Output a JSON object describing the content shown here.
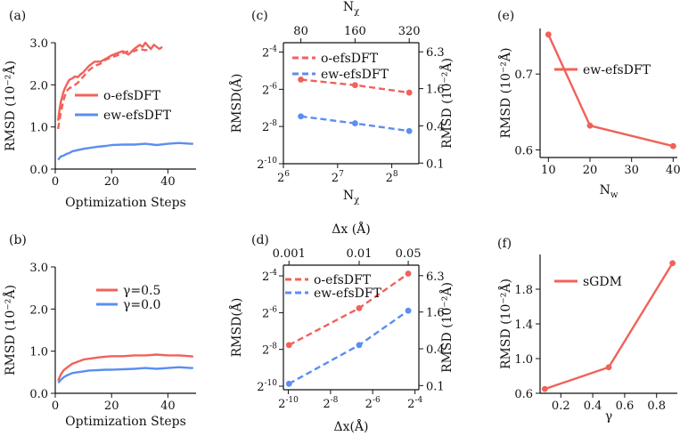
{
  "figure": {
    "colors": {
      "red": "#f0625a",
      "blue": "#5b8ef0",
      "axis": "#111111"
    }
  },
  "chart_data": [
    {
      "panel": "a",
      "tag": "(a)",
      "type": "line",
      "xlabel": "Optimization Steps",
      "ylabel": "RMSD (10⁻²Å)",
      "xlim": [
        0,
        50
      ],
      "ylim": [
        0,
        3.0
      ],
      "xticks": [
        "0",
        "20",
        "40"
      ],
      "yticks": [
        "0.0",
        "1.0",
        "2.0",
        "3.0"
      ],
      "legend_position": "center-right",
      "series": [
        {
          "name": "o-efsDFT",
          "color": "#f0625a",
          "style": "solid",
          "x": [
            1,
            1.5,
            2,
            3,
            4,
            5,
            6,
            7,
            8,
            9,
            10,
            12,
            14,
            16,
            18,
            20,
            22,
            24,
            26,
            28,
            30,
            31,
            32,
            33,
            34,
            35,
            36,
            37,
            38
          ],
          "y": [
            1.15,
            1.4,
            1.6,
            1.85,
            2.0,
            2.12,
            2.15,
            2.2,
            2.18,
            2.25,
            2.3,
            2.45,
            2.55,
            2.55,
            2.62,
            2.7,
            2.75,
            2.8,
            2.72,
            2.85,
            2.95,
            2.9,
            3.0,
            2.92,
            2.85,
            2.95,
            2.9,
            2.85,
            2.9
          ]
        },
        {
          "name": "",
          "color": "#f0625a",
          "style": "dashed",
          "x": [
            1,
            2,
            3,
            4,
            5,
            6,
            8,
            10,
            12,
            14,
            16,
            18,
            20,
            22,
            24,
            26,
            28,
            30,
            32,
            34
          ],
          "y": [
            0.95,
            1.35,
            1.65,
            1.85,
            1.92,
            1.95,
            2.05,
            2.2,
            2.35,
            2.45,
            2.5,
            2.6,
            2.65,
            2.7,
            2.75,
            2.8,
            2.8,
            2.85,
            2.82,
            2.85
          ]
        },
        {
          "name": "ew-efsDFT",
          "color": "#5b8ef0",
          "style": "solid",
          "x": [
            1,
            2,
            3,
            4,
            5,
            6,
            8,
            10,
            12,
            15,
            18,
            20,
            24,
            28,
            32,
            36,
            40,
            44,
            48,
            49
          ],
          "y": [
            0.22,
            0.3,
            0.32,
            0.36,
            0.38,
            0.42,
            0.45,
            0.48,
            0.5,
            0.53,
            0.55,
            0.57,
            0.58,
            0.58,
            0.6,
            0.57,
            0.6,
            0.62,
            0.6,
            0.6
          ]
        }
      ]
    },
    {
      "panel": "b",
      "tag": "(b)",
      "type": "line",
      "xlabel": "Optimization Steps",
      "ylabel": "RMSD (10⁻²Å)",
      "xlim": [
        0,
        50
      ],
      "ylim": [
        0,
        3.0
      ],
      "xticks": [
        "0",
        "20",
        "40"
      ],
      "yticks": [
        "0.0",
        "1.0",
        "2.0",
        "3.0"
      ],
      "legend_position": "top-center",
      "series": [
        {
          "name": "γ=0.5",
          "color": "#f0625a",
          "style": "solid",
          "x": [
            1,
            2,
            3,
            4,
            5,
            6,
            8,
            10,
            12,
            15,
            18,
            20,
            24,
            28,
            32,
            36,
            40,
            44,
            48,
            49
          ],
          "y": [
            0.3,
            0.45,
            0.55,
            0.6,
            0.65,
            0.7,
            0.75,
            0.8,
            0.82,
            0.85,
            0.87,
            0.88,
            0.88,
            0.9,
            0.9,
            0.92,
            0.9,
            0.9,
            0.88,
            0.87
          ]
        },
        {
          "name": "γ=0.0",
          "color": "#5b8ef0",
          "style": "solid",
          "x": [
            1,
            2,
            3,
            4,
            5,
            6,
            8,
            10,
            12,
            15,
            18,
            20,
            24,
            28,
            32,
            36,
            40,
            44,
            48,
            49
          ],
          "y": [
            0.25,
            0.32,
            0.38,
            0.42,
            0.45,
            0.48,
            0.5,
            0.52,
            0.54,
            0.55,
            0.56,
            0.56,
            0.57,
            0.58,
            0.6,
            0.58,
            0.6,
            0.62,
            0.6,
            0.6
          ]
        }
      ]
    },
    {
      "panel": "c",
      "tag": "(c)",
      "type": "line",
      "xlabel": "Nχ",
      "ylabel": "RMSD(Å)",
      "y2label": "RMSD (10⁻²Å)",
      "x2label": "Nχ",
      "x_scale": "log2",
      "y_scale": "log2",
      "xlim": [
        64,
        362
      ],
      "ylim": [
        0.000977,
        0.0884
      ],
      "xticks": [
        {
          "label": "2",
          "sup": "6",
          "v": 64
        },
        {
          "label": "2",
          "sup": "7",
          "v": 128
        },
        {
          "label": "2",
          "sup": "8",
          "v": 256
        }
      ],
      "yticks": [
        {
          "label": "2",
          "sup": "-10",
          "v": 0.000977
        },
        {
          "label": "2",
          "sup": "-8",
          "v": 0.00391
        },
        {
          "label": "2",
          "sup": "-6",
          "v": 0.0156
        },
        {
          "label": "2",
          "sup": "-4",
          "v": 0.0625
        }
      ],
      "x2ticks": [
        {
          "label": "80",
          "v": 80
        },
        {
          "label": "160",
          "v": 160
        },
        {
          "label": "320",
          "v": 320
        }
      ],
      "y2ticks": [
        {
          "label": "0.1",
          "v": 0.001
        },
        {
          "label": "0.4",
          "v": 0.004
        },
        {
          "label": "1.6",
          "v": 0.016
        },
        {
          "label": "6.3",
          "v": 0.063
        }
      ],
      "legend_position": "top-right",
      "series": [
        {
          "name": "o-efsDFT",
          "color": "#f0625a",
          "style": "dashed",
          "x": [
            80,
            160,
            320
          ],
          "y": [
            0.0224,
            0.0182,
            0.0138
          ]
        },
        {
          "name": "ew-efsDFT",
          "color": "#5b8ef0",
          "style": "dashed",
          "x": [
            80,
            160,
            320
          ],
          "y": [
            0.0057,
            0.0044,
            0.0033
          ]
        }
      ]
    },
    {
      "panel": "d",
      "tag": "(d)",
      "type": "line",
      "xlabel": "Δx(Å)",
      "ylabel": "RMSD(Å)",
      "y2label": "RMSD (10⁻²Å)",
      "x2label": "Δx (Å)",
      "x_scale": "log2",
      "y_scale": "log2",
      "xlim": [
        0.000833,
        0.0709
      ],
      "ylim": [
        0.000855,
        0.0936
      ],
      "xticks": [
        {
          "label": "2",
          "sup": "-10",
          "v": 0.000977
        },
        {
          "label": "2",
          "sup": "-8",
          "v": 0.00391
        },
        {
          "label": "2",
          "sup": "-6",
          "v": 0.0156
        },
        {
          "label": "2",
          "sup": "-4",
          "v": 0.0625
        }
      ],
      "yticks": [
        {
          "label": "2",
          "sup": "-10",
          "v": 0.000977
        },
        {
          "label": "2",
          "sup": "-8",
          "v": 0.00391
        },
        {
          "label": "2",
          "sup": "-6",
          "v": 0.0156
        },
        {
          "label": "2",
          "sup": "-4",
          "v": 0.0625
        }
      ],
      "x2ticks": [
        {
          "label": "0.001",
          "v": 0.001
        },
        {
          "label": "0.01",
          "v": 0.01
        },
        {
          "label": "0.05",
          "v": 0.05
        }
      ],
      "y2ticks": [
        {
          "label": "0.1",
          "v": 0.001
        },
        {
          "label": "0.4",
          "v": 0.004
        },
        {
          "label": "1.6",
          "v": 0.016
        },
        {
          "label": "6.3",
          "v": 0.063
        }
      ],
      "legend_position": "top-left",
      "series": [
        {
          "name": "o-efsDFT",
          "color": "#f0625a",
          "style": "dashed",
          "x": [
            0.001,
            0.01,
            0.05
          ],
          "y": [
            0.0046,
            0.0185,
            0.068
          ]
        },
        {
          "name": "ew-efsDFT",
          "color": "#5b8ef0",
          "style": "dashed",
          "x": [
            0.001,
            0.01,
            0.05
          ],
          "y": [
            0.00107,
            0.0046,
            0.0168
          ]
        }
      ]
    },
    {
      "panel": "e",
      "tag": "(e)",
      "type": "line",
      "xlabel": "N_w",
      "xlabel_main": "N",
      "xlabel_sub": "w",
      "ylabel": "RMSD (10⁻²Å)",
      "xlim": [
        8,
        41
      ],
      "ylim": [
        0.59,
        0.76
      ],
      "xticks": [
        {
          "label": "10",
          "v": 10
        },
        {
          "label": "20",
          "v": 20
        },
        {
          "label": "30",
          "v": 30
        },
        {
          "label": "40",
          "v": 40
        }
      ],
      "yticks": [
        {
          "label": "0.6",
          "v": 0.6
        },
        {
          "label": "0.7",
          "v": 0.7
        }
      ],
      "legend_position": "top-right",
      "series": [
        {
          "name": "ew-efsDFT",
          "color": "#f0625a",
          "style": "solid",
          "x": [
            10,
            20,
            40
          ],
          "y": [
            0.752,
            0.632,
            0.605
          ]
        }
      ]
    },
    {
      "panel": "f",
      "tag": "(f)",
      "type": "line",
      "xlabel": "γ",
      "ylabel": "RMSD (10⁻²Å)",
      "xlim": [
        0.07,
        0.93
      ],
      "ylim": [
        0.6,
        2.2
      ],
      "xticks": [
        {
          "label": "0.2",
          "v": 0.2
        },
        {
          "label": "0.4",
          "v": 0.4
        },
        {
          "label": "0.6",
          "v": 0.6
        },
        {
          "label": "0.8",
          "v": 0.8
        }
      ],
      "yticks": [
        {
          "label": "0.6",
          "v": 0.6
        },
        {
          "label": "1.0",
          "v": 1.0
        },
        {
          "label": "1.4",
          "v": 1.4
        },
        {
          "label": "1.8",
          "v": 1.8
        }
      ],
      "legend_position": "top-left",
      "series": [
        {
          "name": "sGDM",
          "color": "#f0625a",
          "style": "solid",
          "x": [
            0.1,
            0.5,
            0.9
          ],
          "y": [
            0.65,
            0.9,
            2.1
          ]
        }
      ]
    }
  ]
}
